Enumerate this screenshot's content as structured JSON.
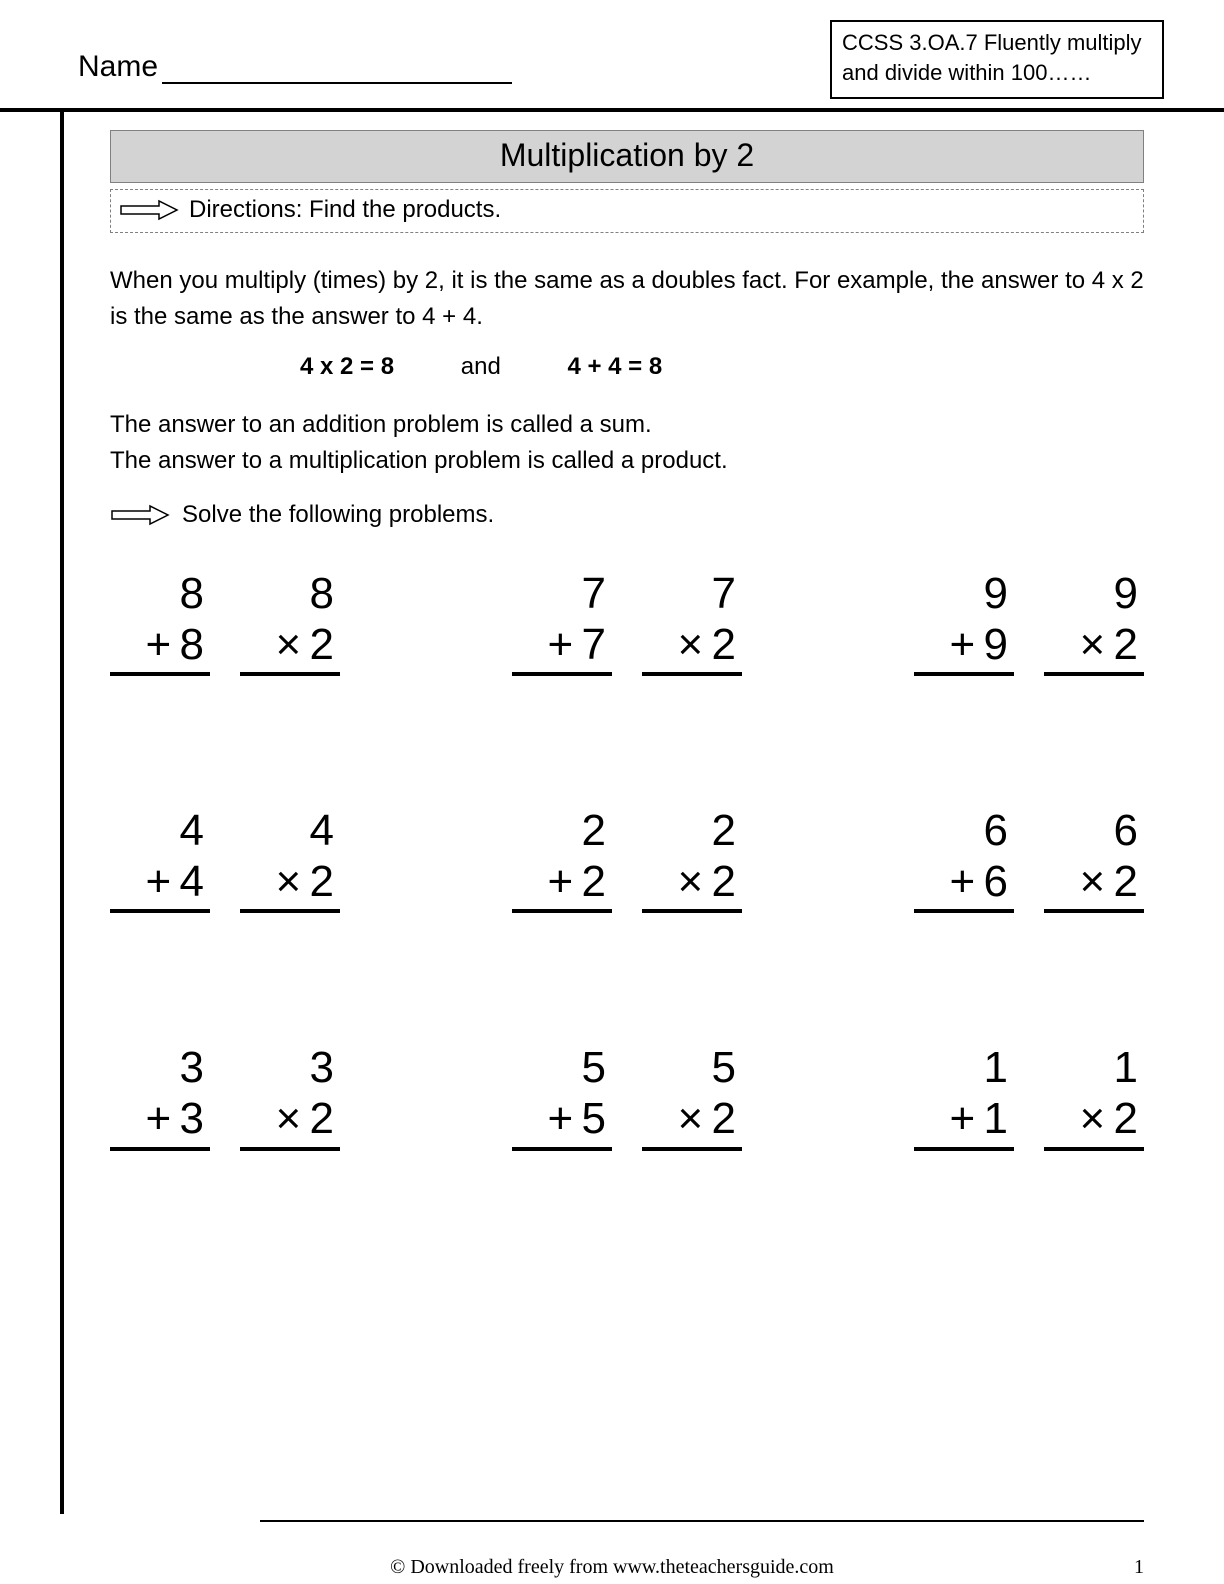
{
  "header": {
    "name_label": "Name",
    "ccss_text": "CCSS 3.OA.7 Fluently multiply and divide   within 100……"
  },
  "title": "Multiplication by 2",
  "directions": "Directions: Find the products.",
  "explain_text": "When you multiply (times) by 2, it is the same as a doubles fact.  For example, the answer to 4 x 2  is the same as the answer to 4 + 4.",
  "example": {
    "left": "4 x 2 = 8",
    "mid": "and",
    "right": "4 + 4 = 8"
  },
  "definitions_line1": "The answer to an addition problem is called a sum.",
  "definitions_line2": "The answer to a multiplication problem is called a product.",
  "solve_text": "Solve the following problems.",
  "ops": {
    "plus": "+",
    "times": "×"
  },
  "rows": [
    [
      {
        "add_top": "8",
        "add_bot": "8",
        "mul_top": "8",
        "mul_bot": "2"
      },
      {
        "add_top": "7",
        "add_bot": "7",
        "mul_top": "7",
        "mul_bot": "2"
      },
      {
        "add_top": "9",
        "add_bot": "9",
        "mul_top": "9",
        "mul_bot": "2"
      }
    ],
    [
      {
        "add_top": "4",
        "add_bot": "4",
        "mul_top": "4",
        "mul_bot": "2"
      },
      {
        "add_top": "2",
        "add_bot": "2",
        "mul_top": "2",
        "mul_bot": "2"
      },
      {
        "add_top": "6",
        "add_bot": "6",
        "mul_top": "6",
        "mul_bot": "2"
      }
    ],
    [
      {
        "add_top": "3",
        "add_bot": "3",
        "mul_top": "3",
        "mul_bot": "2"
      },
      {
        "add_top": "5",
        "add_bot": "5",
        "mul_top": "5",
        "mul_bot": "2"
      },
      {
        "add_top": "1",
        "add_bot": "1",
        "mul_top": "1",
        "mul_bot": "2"
      }
    ]
  ],
  "footer": {
    "text": "© Downloaded freely from www.theteachersguide.com",
    "page": "1"
  },
  "style": {
    "page_bg": "#ffffff",
    "text_color": "#000000",
    "title_bg": "#d3d3d3",
    "title_border": "#808080",
    "dash_border": "#808080",
    "rule_color": "#000000",
    "body_font": "Comic Sans MS",
    "footer_font": "Times New Roman",
    "name_fontsize": 30,
    "ccss_fontsize": 22,
    "title_fontsize": 32,
    "body_fontsize": 24,
    "problem_fontsize": 44,
    "footer_fontsize": 20,
    "arrow_stroke": "#000000",
    "arrow_fill": "#ffffff"
  }
}
